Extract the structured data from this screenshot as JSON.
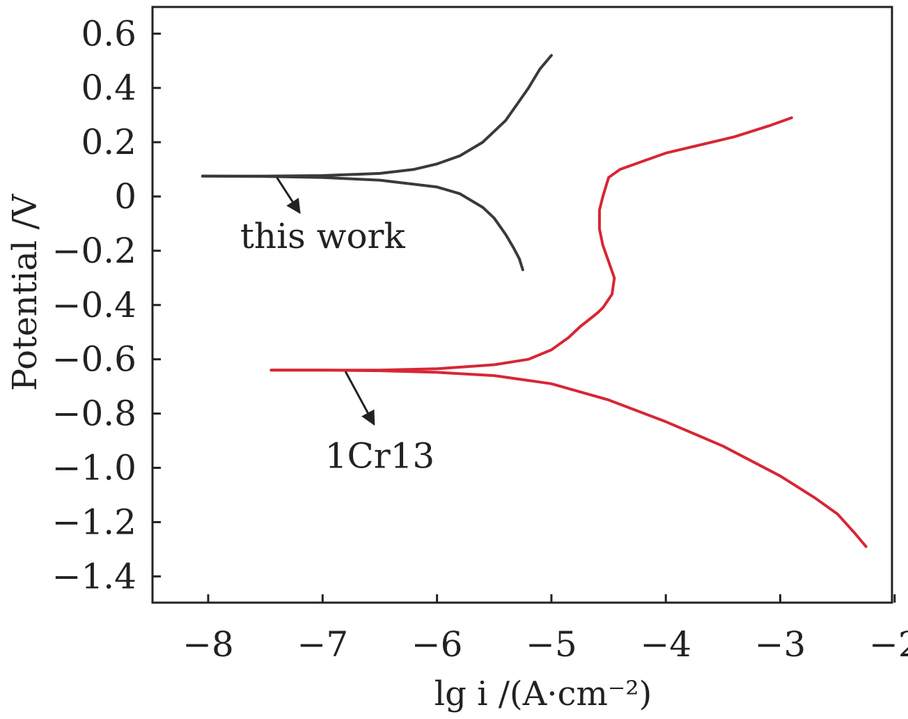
{
  "chart_data": {
    "type": "line",
    "xlabel": "lg i /(A·cm⁻²)",
    "ylabel": "Potential /V",
    "xlim": [
      -8.5,
      -2
    ],
    "ylim": [
      -1.5,
      0.7
    ],
    "xticks": [
      -8,
      -7,
      -6,
      -5,
      -4,
      -3,
      -2
    ],
    "xtick_labels": [
      "−8",
      "−7",
      "−6",
      "−5",
      "−4",
      "−3",
      "−2"
    ],
    "yticks": [
      0.6,
      0.4,
      0.2,
      0,
      -0.2,
      -0.4,
      -0.6,
      -0.8,
      -1.0,
      -1.2,
      -1.4
    ],
    "ytick_labels": [
      "0.6",
      "0.4",
      "0.2",
      "0",
      "−0.2",
      "−0.4",
      "−0.6",
      "−0.8",
      "−1.0",
      "−1.2",
      "−1.4"
    ],
    "grid": false,
    "series": [
      {
        "name": "this work",
        "color": "#3a3a3a",
        "branches": [
          {
            "x": [
              -8.05,
              -7.5,
              -7.0,
              -6.5,
              -6.2,
              -6.0,
              -5.8,
              -5.6,
              -5.4,
              -5.3,
              -5.2,
              -5.1,
              -5.0
            ],
            "y": [
              0.075,
              0.075,
              0.077,
              0.085,
              0.1,
              0.12,
              0.15,
              0.2,
              0.28,
              0.34,
              0.4,
              0.47,
              0.52
            ]
          },
          {
            "x": [
              -8.05,
              -7.5,
              -7.0,
              -6.5,
              -6.0,
              -5.8,
              -5.6,
              -5.5,
              -5.4,
              -5.33,
              -5.28,
              -5.25
            ],
            "y": [
              0.075,
              0.074,
              0.07,
              0.06,
              0.035,
              0.01,
              -0.04,
              -0.08,
              -0.14,
              -0.19,
              -0.23,
              -0.27
            ]
          }
        ],
        "annotation": {
          "text": "this work",
          "x": -7.0,
          "y": -0.19,
          "arrow_from": [
            -7.4,
            0.07
          ],
          "arrow_to": [
            -7.2,
            -0.06
          ]
        }
      },
      {
        "name": "1Cr13",
        "color": "#d62735",
        "branches": [
          {
            "x": [
              -7.45,
              -7.0,
              -6.5,
              -6.0,
              -5.5,
              -5.2,
              -5.0,
              -4.85,
              -4.75,
              -4.6,
              -4.55,
              -4.47,
              -4.45,
              -4.5,
              -4.55,
              -4.58,
              -4.58,
              -4.55,
              -4.5,
              -4.4,
              -4.2,
              -4.0,
              -3.7,
              -3.4,
              -3.1,
              -2.9
            ],
            "y": [
              -0.64,
              -0.64,
              -0.64,
              -0.635,
              -0.62,
              -0.6,
              -0.565,
              -0.52,
              -0.48,
              -0.43,
              -0.41,
              -0.36,
              -0.3,
              -0.24,
              -0.18,
              -0.12,
              -0.05,
              0.0,
              0.07,
              0.1,
              0.13,
              0.16,
              0.19,
              0.22,
              0.26,
              0.29
            ]
          },
          {
            "x": [
              -7.45,
              -7.0,
              -6.5,
              -6.0,
              -5.5,
              -5.0,
              -4.5,
              -4.0,
              -3.5,
              -3.0,
              -2.7,
              -2.5,
              -2.35,
              -2.25
            ],
            "y": [
              -0.64,
              -0.64,
              -0.642,
              -0.648,
              -0.66,
              -0.69,
              -0.75,
              -0.83,
              -0.92,
              -1.03,
              -1.11,
              -1.17,
              -1.24,
              -1.29
            ]
          }
        ],
        "annotation": {
          "text": "1Cr13",
          "x": -6.5,
          "y": -1.0,
          "arrow_from": [
            -6.8,
            -0.645
          ],
          "arrow_to": [
            -6.55,
            -0.84
          ]
        }
      }
    ]
  }
}
